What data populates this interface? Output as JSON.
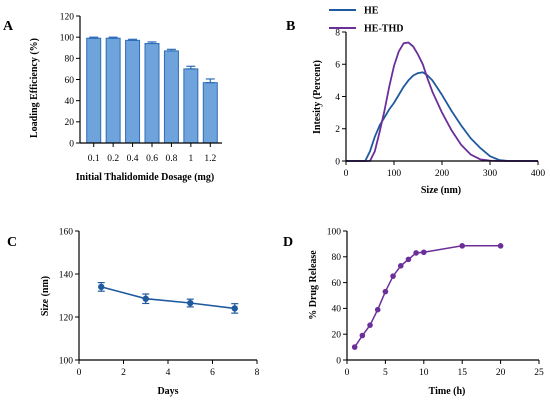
{
  "colors": {
    "bar_fill": "#6fa3dc",
    "bar_edge": "#2e6cb8",
    "he": "#1f5a9e",
    "he_thd": "#6b2f9a",
    "size_line": "#1f5a9e",
    "release_line": "#6b2f9a",
    "axis": "#000000"
  },
  "chart_data": [
    {
      "panel": "A",
      "type": "bar",
      "xlabel": "Initial Thalidomide Dosage (mg)",
      "ylabel": "Loading Efficiency (%)",
      "ylim": [
        0,
        120
      ],
      "yticks": [
        0,
        20,
        40,
        60,
        80,
        100,
        120
      ],
      "categories": [
        "0.1",
        "0.2",
        "0.4",
        "0.6",
        "0.8",
        "1",
        "1.2"
      ],
      "values": [
        99,
        99,
        97,
        94,
        87,
        70,
        57
      ],
      "errors": [
        1,
        1,
        1,
        1.5,
        1.5,
        2.5,
        3.5
      ]
    },
    {
      "panel": "B",
      "type": "line",
      "xlabel": "Size (nm)",
      "ylabel": "Intesity (Percent)",
      "xlim": [
        0,
        400
      ],
      "ylim": [
        0,
        8
      ],
      "xticks": [
        0,
        100,
        200,
        300,
        400
      ],
      "yticks": [
        0,
        2,
        4,
        6,
        8
      ],
      "legend_position": "top",
      "series": [
        {
          "name": "HE",
          "x": [
            0,
            40,
            50,
            60,
            70,
            80,
            90,
            100,
            110,
            120,
            130,
            140,
            150,
            160,
            170,
            180,
            200,
            220,
            240,
            260,
            280,
            300,
            320,
            340,
            400
          ],
          "y": [
            0,
            0,
            0.6,
            1.5,
            2.2,
            2.7,
            3.2,
            3.6,
            4.1,
            4.6,
            5.0,
            5.3,
            5.45,
            5.5,
            5.3,
            5.0,
            4.1,
            3.1,
            2.2,
            1.4,
            0.8,
            0.3,
            0.05,
            0,
            0
          ]
        },
        {
          "name": "HE-THD",
          "x": [
            0,
            50,
            60,
            70,
            80,
            90,
            100,
            110,
            120,
            130,
            140,
            150,
            160,
            170,
            180,
            200,
            220,
            240,
            260,
            280,
            300,
            320,
            400
          ],
          "y": [
            0,
            0,
            0.6,
            1.8,
            3.1,
            4.6,
            5.9,
            6.8,
            7.3,
            7.35,
            7.1,
            6.6,
            6.0,
            5.1,
            4.3,
            3.0,
            1.9,
            1.0,
            0.4,
            0.1,
            0.02,
            0,
            0
          ]
        }
      ]
    },
    {
      "panel": "C",
      "type": "line",
      "xlabel": "Days",
      "ylabel": "Size (nm)",
      "xlim": [
        0,
        8
      ],
      "ylim": [
        100,
        160
      ],
      "xticks": [
        0,
        2,
        4,
        6,
        8
      ],
      "yticks": [
        100,
        120,
        140,
        160
      ],
      "x": [
        1,
        3,
        5,
        7
      ],
      "y": [
        134,
        128.5,
        126.5,
        124
      ],
      "errors": [
        2,
        2.2,
        1.8,
        2.2
      ]
    },
    {
      "panel": "D",
      "type": "line",
      "xlabel": "Time (h)",
      "ylabel": "% Drug Release",
      "xlim": [
        0,
        25
      ],
      "ylim": [
        0,
        100
      ],
      "xticks": [
        0,
        5,
        10,
        15,
        20,
        25
      ],
      "yticks": [
        0,
        20,
        40,
        60,
        80,
        100
      ],
      "x": [
        1,
        2,
        3,
        4,
        5,
        6,
        7,
        8,
        9,
        10,
        15,
        20
      ],
      "y": [
        10,
        19,
        27,
        39,
        53,
        65,
        73,
        78,
        83,
        83.5,
        88.5,
        88.5
      ]
    }
  ]
}
